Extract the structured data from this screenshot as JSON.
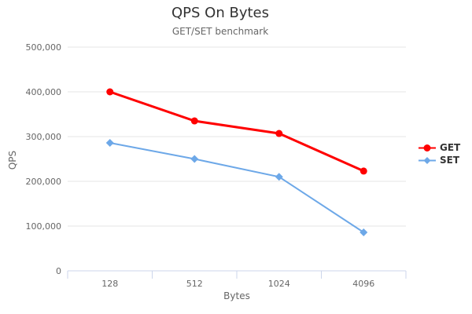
{
  "chart_data": {
    "type": "line",
    "title": "QPS On Bytes",
    "subtitle": "GET/SET benchmark",
    "xlabel": "Bytes",
    "ylabel": "QPS",
    "categories": [
      "128",
      "512",
      "1024",
      "4096"
    ],
    "series": [
      {
        "name": "GET",
        "color": "#ff0000",
        "marker": "circle",
        "values": [
          400000,
          335000,
          307000,
          223000
        ]
      },
      {
        "name": "SET",
        "color": "#6da8e8",
        "marker": "diamond",
        "values": [
          286000,
          250000,
          210000,
          86000
        ]
      }
    ],
    "ylim": [
      0,
      500000
    ],
    "y_ticks": [
      0,
      100000,
      200000,
      300000,
      400000,
      500000
    ],
    "y_tick_labels": [
      "0",
      "100,000",
      "200,000",
      "300,000",
      "400,000",
      "500,000"
    ],
    "grid": true,
    "legend_position": "right",
    "colors": {
      "grid": "#e6e6e6",
      "axis_line": "#ccd6eb",
      "tick_label": "#666666",
      "axis_title": "#666666",
      "title": "#333333",
      "subtitle": "#666666",
      "legend_text": "#333333",
      "background": "#ffffff"
    }
  }
}
